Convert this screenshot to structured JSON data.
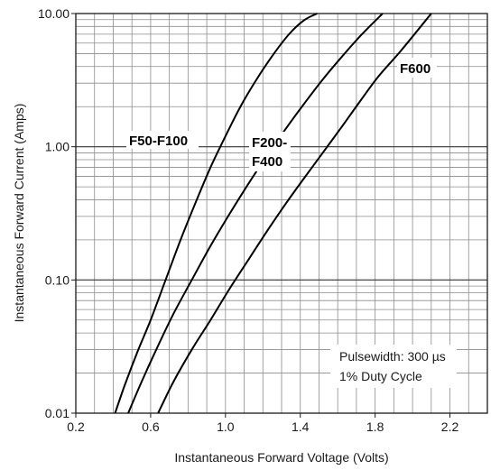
{
  "chart_data": {
    "type": "line",
    "xlabel": "Instantaneous Forward Voltage (Volts)",
    "ylabel": "Instantaneous Forward Current (Amps)",
    "xlim": [
      0.2,
      2.4
    ],
    "ylim": [
      0.01,
      10
    ],
    "yscale": "log",
    "grid": true,
    "x_ticks": [
      "0.2",
      "0.6",
      "1.0",
      "1.4",
      "1.8",
      "2.2"
    ],
    "y_ticks": [
      "0.01",
      "0.10",
      "1.00",
      "10.00"
    ],
    "series": [
      {
        "name": "F50-F100",
        "x": [
          0.41,
          0.46,
          0.53,
          0.6,
          0.68,
          0.76,
          0.84,
          0.92,
          1.0,
          1.08,
          1.16,
          1.25,
          1.34,
          1.42,
          1.49
        ],
        "y": [
          0.01,
          0.016,
          0.029,
          0.05,
          0.1,
          0.2,
          0.38,
          0.7,
          1.2,
          2.0,
          3.1,
          4.8,
          7.0,
          8.9,
          10.0
        ]
      },
      {
        "name": "F200-F400",
        "x": [
          0.48,
          0.55,
          0.63,
          0.72,
          0.82,
          0.92,
          1.02,
          1.12,
          1.22,
          1.32,
          1.42,
          1.52,
          1.62,
          1.73,
          1.84
        ],
        "y": [
          0.01,
          0.017,
          0.03,
          0.055,
          0.1,
          0.18,
          0.31,
          0.52,
          0.85,
          1.35,
          2.1,
          3.2,
          4.7,
          7.0,
          10.0
        ]
      },
      {
        "name": "F600",
        "x": [
          0.64,
          0.72,
          0.82,
          0.92,
          1.02,
          1.12,
          1.22,
          1.32,
          1.42,
          1.52,
          1.62,
          1.72,
          1.82,
          1.94,
          2.1
        ],
        "y": [
          0.01,
          0.017,
          0.03,
          0.05,
          0.085,
          0.14,
          0.23,
          0.37,
          0.58,
          0.9,
          1.4,
          2.2,
          3.4,
          5.3,
          10.0
        ]
      }
    ],
    "curve_labels": [
      {
        "text": "F50-F100",
        "series": "F50-F100"
      },
      {
        "text": "F200-",
        "series": "F200-F400"
      },
      {
        "text": "F400",
        "series": "F200-F400"
      },
      {
        "text": "F600",
        "series": "F600"
      }
    ],
    "annotations": [
      "Pulsewidth: 300 µs",
      "1% Duty Cycle"
    ]
  }
}
